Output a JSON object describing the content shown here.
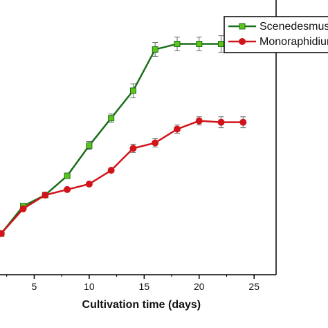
{
  "chart_data": {
    "type": "line",
    "title": "",
    "xlabel": "Cultivation time (days)",
    "ylabel": "",
    "xlim": [
      0,
      27
    ],
    "ylim": [
      0,
      100
    ],
    "xticks": [
      5,
      10,
      15,
      20,
      25
    ],
    "grid": false,
    "legend_position": "top-right",
    "series": [
      {
        "name": "Scenedesmus",
        "color": "#1a6e1a",
        "marker_color": "#5cc41a",
        "marker": "square",
        "x": [
          2,
          4,
          6,
          8,
          10,
          12,
          14,
          16,
          18,
          20,
          22,
          24
        ],
        "y": [
          15,
          25,
          29,
          36,
          47,
          57,
          67,
          82,
          84,
          84,
          84,
          84
        ],
        "err": [
          0,
          0,
          0,
          0,
          1.5,
          1.5,
          2.5,
          2.5,
          2.5,
          2.5,
          3,
          3
        ]
      },
      {
        "name": "Monoraphidium",
        "color": "#d0141a",
        "marker_color": "#d0141a",
        "marker": "circle",
        "x": [
          2,
          4,
          6,
          8,
          10,
          12,
          14,
          16,
          18,
          20,
          22,
          24
        ],
        "y": [
          15,
          24,
          29,
          31,
          33,
          38,
          46,
          48,
          53,
          56,
          55.5,
          55.5
        ],
        "err": [
          0,
          0,
          0,
          0,
          0,
          0,
          1.5,
          1.5,
          1.5,
          1.5,
          2,
          2
        ]
      }
    ]
  }
}
